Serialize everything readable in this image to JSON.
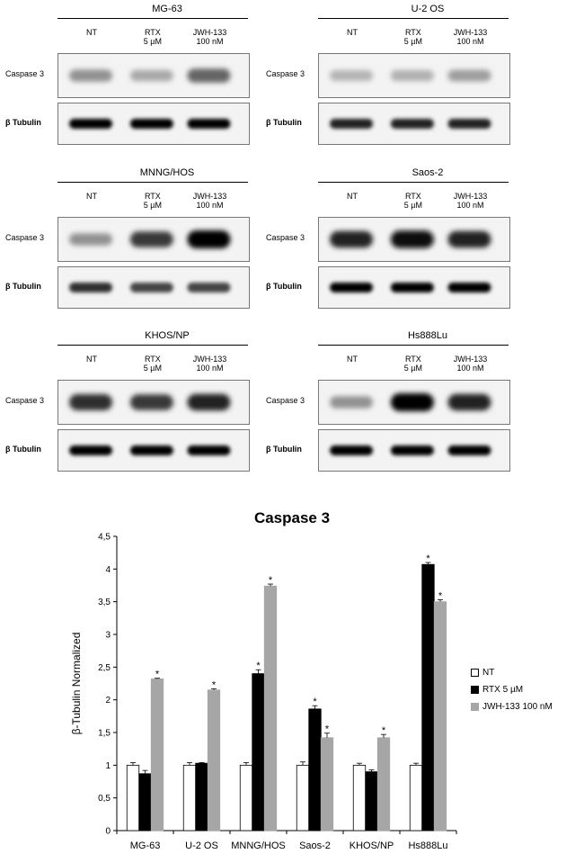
{
  "blots": [
    {
      "title": "MG-63",
      "lanes": [
        [
          "NT",
          ""
        ],
        [
          "RTX",
          "5 µM"
        ],
        [
          "JWH-133",
          "100 nM"
        ]
      ],
      "row1": "Caspase 3",
      "row2": "β Tubulin",
      "c3": [
        0.35,
        0.25,
        0.55
      ],
      "tub": [
        1,
        1,
        1
      ]
    },
    {
      "title": "U-2 OS",
      "lanes": [
        [
          "NT",
          ""
        ],
        [
          "RTX",
          "5 µM"
        ],
        [
          "JWH-133",
          "100 nM"
        ]
      ],
      "row1": "Caspase 3",
      "row2": "β Tubulin",
      "c3": [
        0.2,
        0.22,
        0.3
      ],
      "tub": [
        0.85,
        0.85,
        0.85
      ]
    },
    {
      "title": "MNNG/HOS",
      "lanes": [
        [
          "NT",
          ""
        ],
        [
          "RTX",
          "5 µM"
        ],
        [
          "JWH-133",
          "100 nM"
        ]
      ],
      "row1": "Caspase 3",
      "row2": "β Tubulin",
      "c3": [
        0.35,
        0.75,
        1
      ],
      "tub": [
        0.8,
        0.7,
        0.7
      ]
    },
    {
      "title": "Saos-2",
      "lanes": [
        [
          "NT",
          ""
        ],
        [
          "RTX",
          "5 µM"
        ],
        [
          "JWH-133",
          "100 nM"
        ]
      ],
      "row1": "Caspase 3",
      "row2": "β Tubulin",
      "c3": [
        0.85,
        0.95,
        0.85
      ],
      "tub": [
        1,
        1,
        1
      ]
    },
    {
      "title": "KHOS/NP",
      "lanes": [
        [
          "NT",
          ""
        ],
        [
          "RTX",
          "5 µM"
        ],
        [
          "JWH-133",
          "100 nM"
        ]
      ],
      "row1": "Caspase 3",
      "row2": "β Tubulin",
      "c3": [
        0.8,
        0.75,
        0.85
      ],
      "tub": [
        1,
        1,
        1
      ]
    },
    {
      "title": "Hs888Lu",
      "lanes": [
        [
          "NT",
          ""
        ],
        [
          "RTX",
          "5 µM"
        ],
        [
          "JWH-133",
          "100 nM"
        ]
      ],
      "row1": "Caspase 3",
      "row2": "β Tubulin",
      "c3": [
        0.35,
        1,
        0.85
      ],
      "tub": [
        1,
        1,
        1
      ]
    }
  ],
  "chart_data": {
    "type": "bar",
    "title": "Caspase 3",
    "xlabel": "",
    "ylabel": "β-Tubulin Normalized",
    "ylim": [
      0,
      4.5
    ],
    "yticks": [
      "0",
      "0,5",
      "1",
      "1,5",
      "2",
      "2,5",
      "3",
      "3,5",
      "4",
      "4,5"
    ],
    "categories": [
      "MG-63",
      "U-2 OS",
      "MNNG/HOS",
      "Saos-2",
      "KHOS/NP",
      "Hs888Lu"
    ],
    "series": [
      {
        "name": "NT",
        "color": "#ffffff",
        "values": [
          1,
          1,
          1,
          1,
          1,
          1
        ],
        "errors": [
          0.04,
          0.04,
          0.04,
          0.05,
          0.03,
          0.03
        ],
        "sig": [
          false,
          false,
          false,
          false,
          false,
          false
        ]
      },
      {
        "name": "RTX 5 µM",
        "color": "#000000",
        "values": [
          0.87,
          1.03,
          2.4,
          1.86,
          0.9,
          4.07
        ],
        "errors": [
          0.05,
          0.01,
          0.06,
          0.05,
          0.03,
          0.03
        ],
        "sig": [
          false,
          false,
          true,
          true,
          false,
          true
        ]
      },
      {
        "name": "JWH-133 100 nM",
        "color": "#a6a6a6",
        "values": [
          2.32,
          2.15,
          3.74,
          1.42,
          1.42,
          3.5
        ],
        "errors": [
          0.01,
          0.02,
          0.03,
          0.07,
          0.05,
          0.03
        ],
        "sig": [
          true,
          true,
          true,
          true,
          true,
          true
        ]
      }
    ],
    "sig_marker": "*",
    "grid": false,
    "legend_position": "right"
  }
}
